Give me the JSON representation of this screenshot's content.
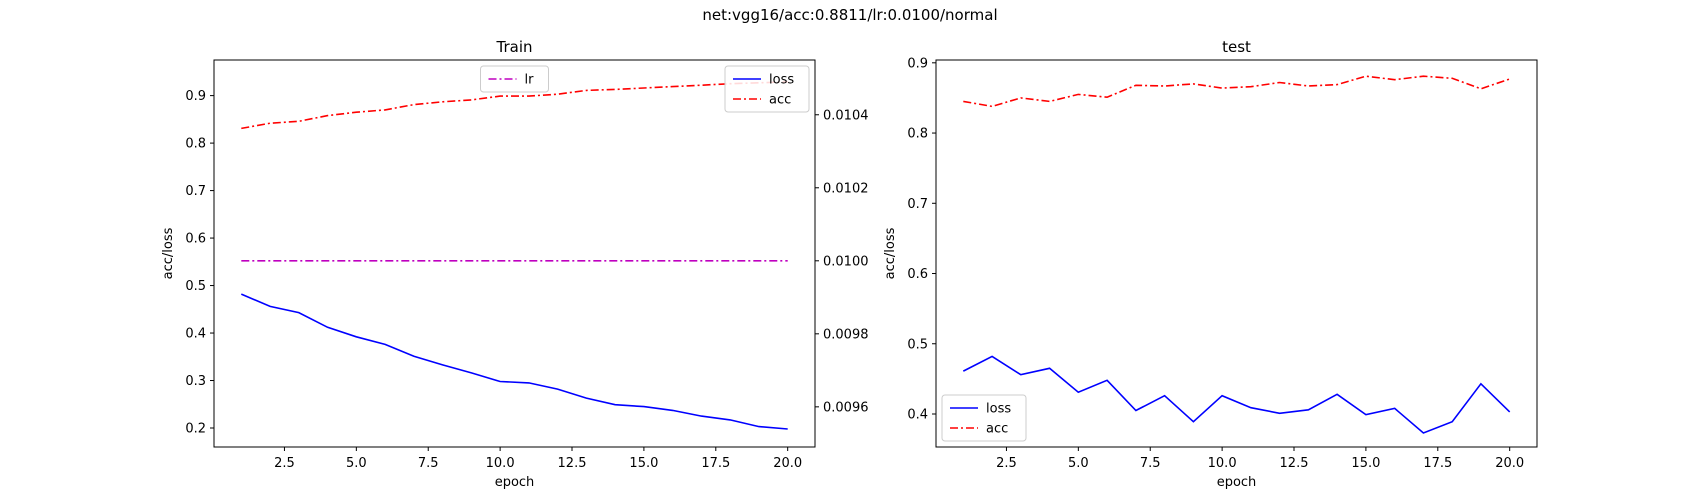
{
  "figure": {
    "suptitle": "net:vgg16/acc:0.8811/lr:0.0100/normal"
  },
  "colors": {
    "loss": "#0000ff",
    "acc": "#ff0000",
    "lr": "#bf00bf",
    "axis": "#000000",
    "background": "#ffffff"
  },
  "chart_data": [
    {
      "type": "line",
      "title": "Train",
      "xlabel": "epoch",
      "ylabel": "acc/loss",
      "xlim": [
        0.05,
        20.95
      ],
      "ylim": [
        0.16,
        0.975
      ],
      "xticks": [
        2.5,
        5.0,
        7.5,
        10.0,
        12.5,
        15.0,
        17.5,
        20.0
      ],
      "xticklabels": [
        "2.5",
        "5.0",
        "7.5",
        "10.0",
        "12.5",
        "15.0",
        "17.5",
        "20.0"
      ],
      "yticks": [
        0.2,
        0.3,
        0.4,
        0.5,
        0.6,
        0.7,
        0.8,
        0.9
      ],
      "yticklabels": [
        "0.2",
        "0.3",
        "0.4",
        "0.5",
        "0.6",
        "0.7",
        "0.8",
        "0.9"
      ],
      "grid": false,
      "x": [
        1,
        2,
        3,
        4,
        5,
        6,
        7,
        8,
        9,
        10,
        11,
        12,
        13,
        14,
        15,
        16,
        17,
        18,
        19,
        20
      ],
      "series": [
        {
          "name": "loss",
          "color": "#0000ff",
          "style": "solid",
          "axis": "left",
          "values": [
            0.482,
            0.456,
            0.443,
            0.412,
            0.392,
            0.376,
            0.351,
            0.333,
            0.316,
            0.298,
            0.295,
            0.282,
            0.263,
            0.249,
            0.245,
            0.237,
            0.225,
            0.217,
            0.203,
            0.198
          ]
        },
        {
          "name": "acc",
          "color": "#ff0000",
          "style": "dashdot",
          "axis": "left",
          "values": [
            0.831,
            0.842,
            0.846,
            0.858,
            0.865,
            0.87,
            0.881,
            0.887,
            0.891,
            0.899,
            0.899,
            0.903,
            0.911,
            0.913,
            0.916,
            0.919,
            0.922,
            0.925,
            0.927,
            0.929
          ]
        },
        {
          "name": "lr",
          "color": "#bf00bf",
          "style": "dashdot",
          "axis": "right",
          "values": [
            0.01,
            0.01,
            0.01,
            0.01,
            0.01,
            0.01,
            0.01,
            0.01,
            0.01,
            0.01,
            0.01,
            0.01,
            0.01,
            0.01,
            0.01,
            0.01,
            0.01,
            0.01,
            0.01,
            0.01
          ]
        }
      ],
      "y2lim": [
        0.00949,
        0.01055
      ],
      "y2ticks": [
        0.0096,
        0.0098,
        0.01,
        0.0102,
        0.0104
      ],
      "y2ticklabels": [
        "0.0096",
        "0.0098",
        "0.0100",
        "0.0102",
        "0.0104"
      ],
      "legends": [
        {
          "placement": "top-center",
          "entries": [
            "lr"
          ]
        },
        {
          "placement": "top-right",
          "entries": [
            "loss",
            "acc"
          ]
        }
      ]
    },
    {
      "type": "line",
      "title": "test",
      "xlabel": "epoch",
      "ylabel": "acc/loss",
      "xlim": [
        0.05,
        20.95
      ],
      "ylim": [
        0.353,
        0.904
      ],
      "xticks": [
        2.5,
        5.0,
        7.5,
        10.0,
        12.5,
        15.0,
        17.5,
        20.0
      ],
      "xticklabels": [
        "2.5",
        "5.0",
        "7.5",
        "10.0",
        "12.5",
        "15.0",
        "17.5",
        "20.0"
      ],
      "yticks": [
        0.4,
        0.5,
        0.6,
        0.7,
        0.8,
        0.9
      ],
      "yticklabels": [
        "0.4",
        "0.5",
        "0.6",
        "0.7",
        "0.8",
        "0.9"
      ],
      "grid": false,
      "x": [
        1,
        2,
        3,
        4,
        5,
        6,
        7,
        8,
        9,
        10,
        11,
        12,
        13,
        14,
        15,
        16,
        17,
        18,
        19,
        20
      ],
      "series": [
        {
          "name": "loss",
          "color": "#0000ff",
          "style": "solid",
          "axis": "left",
          "values": [
            0.461,
            0.482,
            0.456,
            0.465,
            0.431,
            0.448,
            0.405,
            0.426,
            0.389,
            0.426,
            0.409,
            0.401,
            0.406,
            0.428,
            0.399,
            0.408,
            0.373,
            0.389,
            0.443,
            0.403
          ]
        },
        {
          "name": "acc",
          "color": "#ff0000",
          "style": "dashdot",
          "axis": "left",
          "values": [
            0.845,
            0.838,
            0.85,
            0.845,
            0.855,
            0.851,
            0.868,
            0.867,
            0.87,
            0.864,
            0.866,
            0.872,
            0.867,
            0.869,
            0.881,
            0.876,
            0.881,
            0.878,
            0.863,
            0.877
          ]
        }
      ],
      "legends": [
        {
          "placement": "bottom-left",
          "entries": [
            "loss",
            "acc"
          ]
        }
      ]
    }
  ]
}
